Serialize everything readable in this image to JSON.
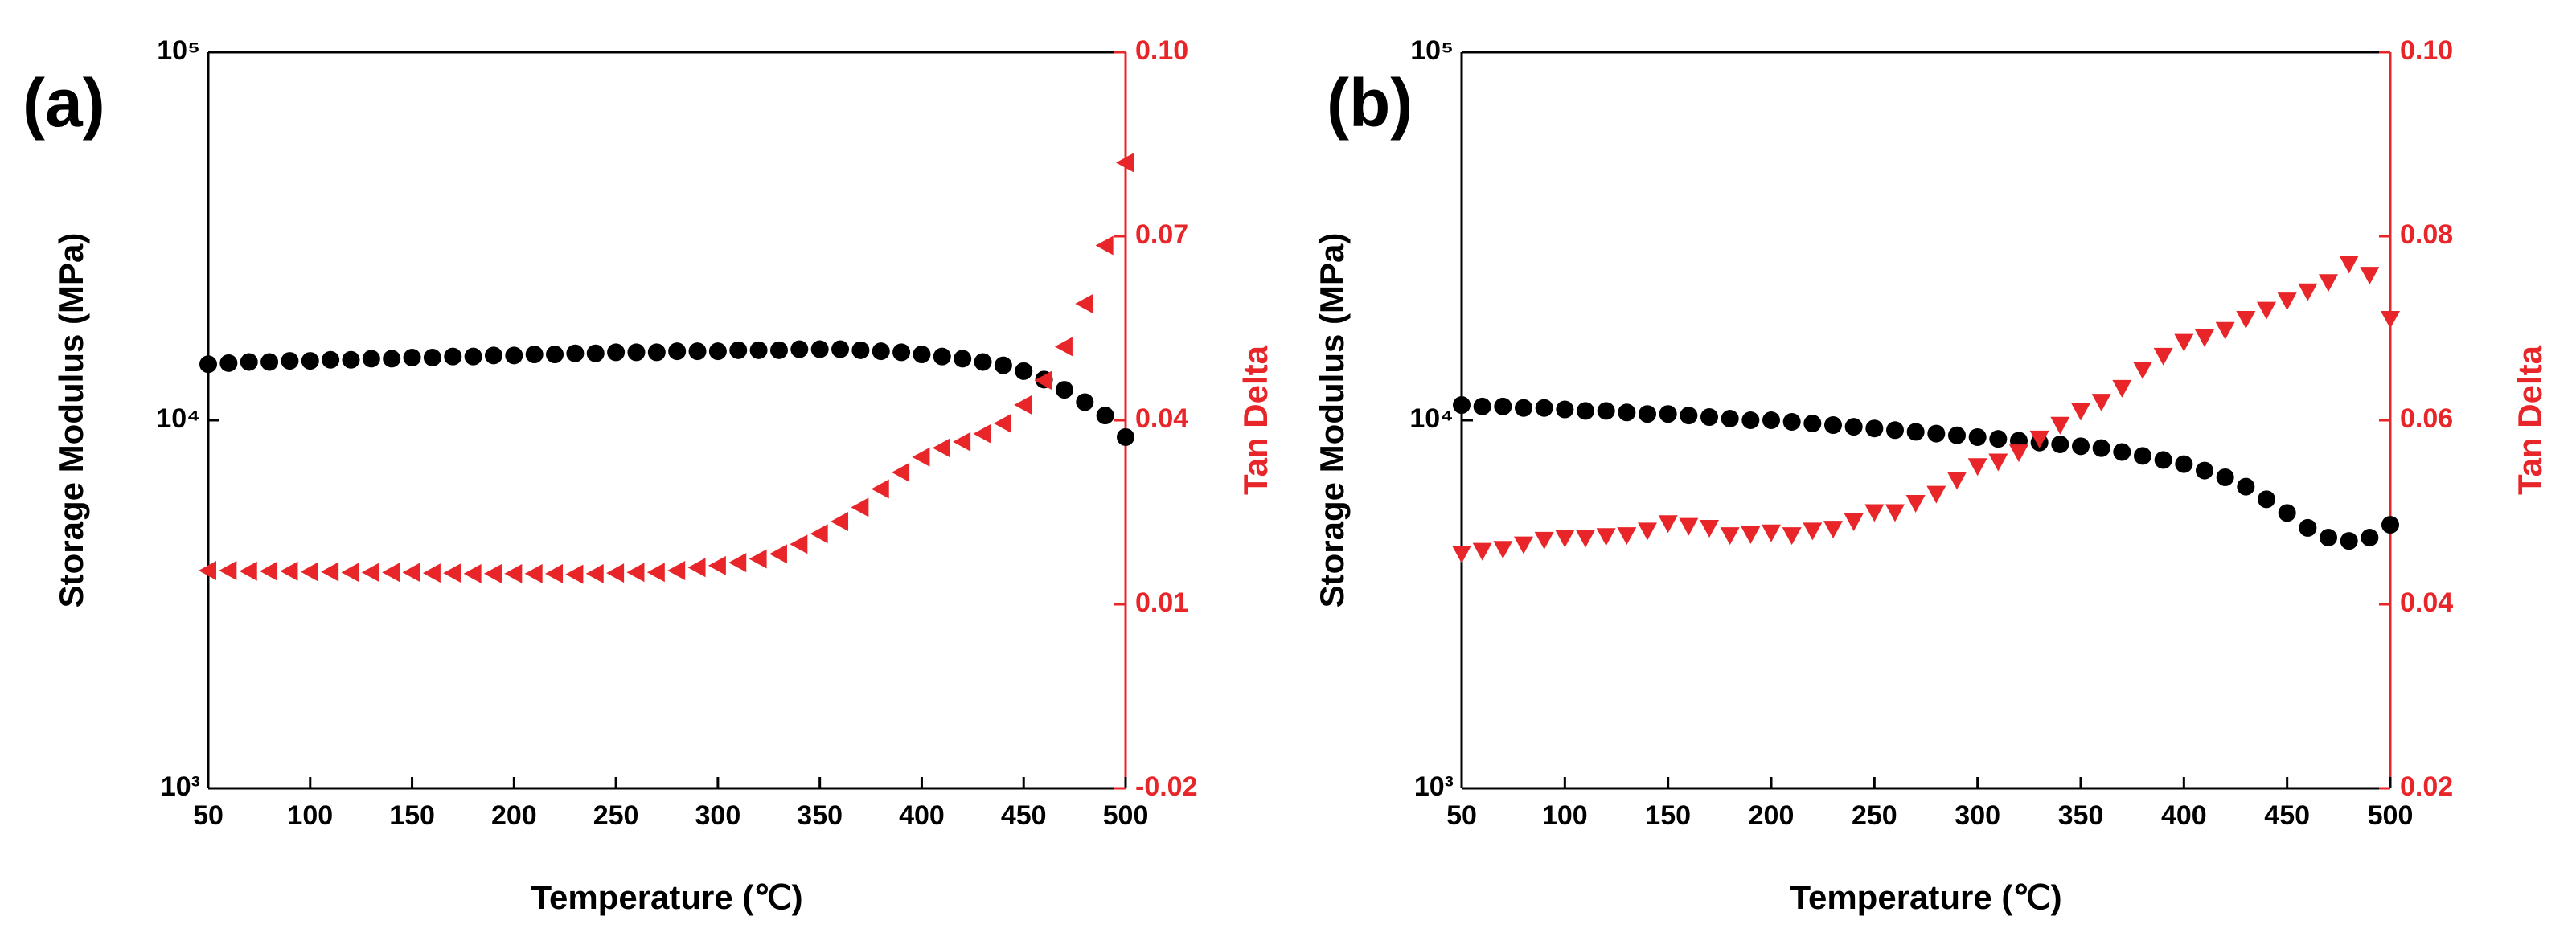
{
  "chart_data": [
    {
      "type": "scatter",
      "panel_label": "(a)",
      "xlabel": "Temperature (℃)",
      "ylabel": "Storage Modulus (MPa)",
      "y2label": "Tan Delta",
      "x": [
        50,
        60,
        70,
        80,
        90,
        100,
        110,
        120,
        130,
        140,
        150,
        160,
        170,
        180,
        190,
        200,
        210,
        220,
        230,
        240,
        250,
        260,
        270,
        280,
        290,
        300,
        310,
        320,
        330,
        340,
        350,
        360,
        370,
        380,
        390,
        400,
        410,
        420,
        430,
        440,
        450,
        460,
        470,
        480,
        490,
        500
      ],
      "xlim": [
        50,
        500
      ],
      "xticks": [
        50,
        100,
        150,
        200,
        250,
        300,
        350,
        400,
        450,
        500
      ],
      "ylim": [
        1000,
        100000
      ],
      "ylog": true,
      "yticks": [
        {
          "value": 1000,
          "label": "10³"
        },
        {
          "value": 10000,
          "label": "10⁴"
        },
        {
          "value": 100000,
          "label": "10⁵"
        }
      ],
      "y2lim": [
        -0.02,
        0.1
      ],
      "y2ticks": [
        -0.02,
        0.01,
        0.04,
        0.07,
        {
          "value": 0.1,
          "label": "0.10"
        }
      ],
      "y2color": "#e8262a",
      "series": [
        {
          "color": "#000000",
          "marker": "circle",
          "values": [
            14200,
            14300,
            14400,
            14400,
            14500,
            14500,
            14600,
            14600,
            14700,
            14700,
            14800,
            14800,
            14900,
            14900,
            15000,
            15000,
            15100,
            15100,
            15200,
            15200,
            15300,
            15300,
            15300,
            15400,
            15400,
            15400,
            15500,
            15500,
            15500,
            15600,
            15600,
            15600,
            15500,
            15400,
            15300,
            15100,
            14900,
            14700,
            14400,
            14100,
            13600,
            12900,
            12100,
            11200,
            10300,
            9000
          ]
        },
        {
          "color": "#e8262a",
          "marker": "triangle-left",
          "axis": "y2",
          "values": [
            0.0155,
            0.0155,
            0.0154,
            0.0154,
            0.0154,
            0.0153,
            0.0153,
            0.0152,
            0.0152,
            0.0152,
            0.0152,
            0.0151,
            0.0151,
            0.015,
            0.015,
            0.015,
            0.015,
            0.015,
            0.0149,
            0.015,
            0.0151,
            0.0152,
            0.0152,
            0.0155,
            0.016,
            0.0163,
            0.0168,
            0.0174,
            0.0182,
            0.0198,
            0.0215,
            0.0235,
            0.0258,
            0.0288,
            0.0315,
            0.034,
            0.0355,
            0.0365,
            0.0378,
            0.0395,
            0.0425,
            0.0465,
            0.052,
            0.059,
            0.0685,
            0.082
          ]
        }
      ]
    },
    {
      "type": "scatter",
      "panel_label": "(b)",
      "xlabel": "Temperature (℃)",
      "ylabel": "Storage Modulus (MPa)",
      "y2label": "Tan Delta",
      "x": [
        50,
        60,
        70,
        80,
        90,
        100,
        110,
        120,
        130,
        140,
        150,
        160,
        170,
        180,
        190,
        200,
        210,
        220,
        230,
        240,
        250,
        260,
        270,
        280,
        290,
        300,
        310,
        320,
        330,
        340,
        350,
        360,
        370,
        380,
        390,
        400,
        410,
        420,
        430,
        440,
        450,
        460,
        470,
        480,
        490,
        500
      ],
      "xlim": [
        50,
        500
      ],
      "xticks": [
        50,
        100,
        150,
        200,
        250,
        300,
        350,
        400,
        450,
        500
      ],
      "ylim": [
        1000,
        100000
      ],
      "ylog": true,
      "yticks": [
        {
          "value": 1000,
          "label": "10³"
        },
        {
          "value": 10000,
          "label": "10⁴"
        },
        {
          "value": 100000,
          "label": "10⁵"
        }
      ],
      "y2lim": [
        0.02,
        0.1
      ],
      "y2ticks": [
        0.02,
        0.04,
        0.06,
        0.08,
        {
          "value": 0.1,
          "label": "0.10"
        }
      ],
      "y2color": "#e8262a",
      "series": [
        {
          "color": "#000000",
          "marker": "circle",
          "values": [
            11000,
            10900,
            10900,
            10800,
            10800,
            10700,
            10600,
            10600,
            10500,
            10400,
            10400,
            10300,
            10200,
            10100,
            10000,
            10000,
            9900,
            9800,
            9700,
            9600,
            9500,
            9400,
            9300,
            9200,
            9100,
            9000,
            8900,
            8800,
            8700,
            8600,
            8500,
            8400,
            8200,
            8000,
            7800,
            7600,
            7300,
            7000,
            6600,
            6100,
            5600,
            5100,
            4800,
            4700,
            4800,
            5200
          ]
        },
        {
          "color": "#e8262a",
          "marker": "triangle-down",
          "axis": "y2",
          "values": [
            0.0455,
            0.0458,
            0.046,
            0.0465,
            0.047,
            0.0472,
            0.0472,
            0.0474,
            0.0475,
            0.048,
            0.0488,
            0.0485,
            0.0483,
            0.0475,
            0.0476,
            0.0478,
            0.0475,
            0.048,
            0.0482,
            0.049,
            0.05,
            0.05,
            0.051,
            0.052,
            0.0535,
            0.055,
            0.0555,
            0.0565,
            0.058,
            0.0595,
            0.061,
            0.062,
            0.0635,
            0.0655,
            0.067,
            0.0685,
            0.069,
            0.0698,
            0.071,
            0.072,
            0.073,
            0.074,
            0.075,
            0.077,
            0.0758,
            0.071
          ]
        }
      ]
    }
  ]
}
